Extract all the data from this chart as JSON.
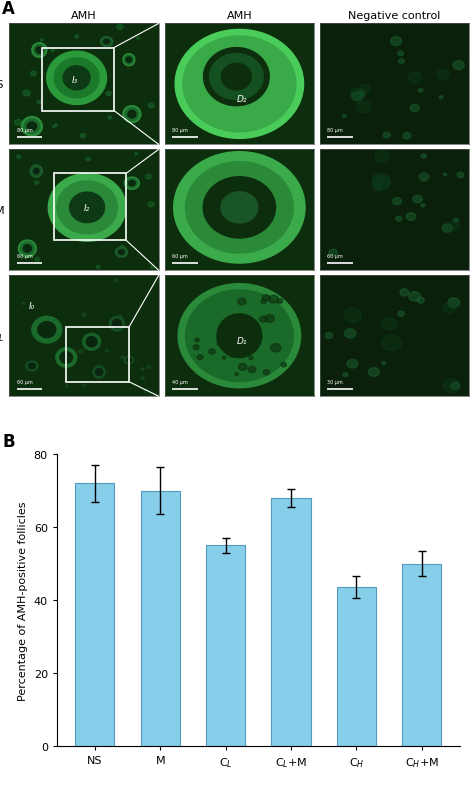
{
  "panel_label_A": "A",
  "panel_label_B": "B",
  "row_labels": [
    "NS",
    "M",
    "C$_L$"
  ],
  "col_labels": [
    "AMH",
    "AMH",
    "Negative control"
  ],
  "bar_labels": [
    "NS",
    "M",
    "C$_L$",
    "C$_L$+M",
    "C$_H$",
    "C$_H$+M"
  ],
  "bar_values": [
    72.0,
    70.0,
    55.0,
    68.0,
    43.5,
    50.0
  ],
  "bar_errors": [
    5.0,
    6.5,
    2.0,
    2.5,
    3.0,
    3.5
  ],
  "bar_color": "#87CEEB",
  "bar_edge_color": "#5599BB",
  "ylabel": "Percentage of AMH-positive follicles",
  "ylim": [
    0,
    80
  ],
  "yticks": [
    0,
    20,
    40,
    60,
    80
  ],
  "bg_color": "#ffffff",
  "micro_bg": "#0d2e0d",
  "fig_width": 4.74,
  "fig_height": 8.12
}
